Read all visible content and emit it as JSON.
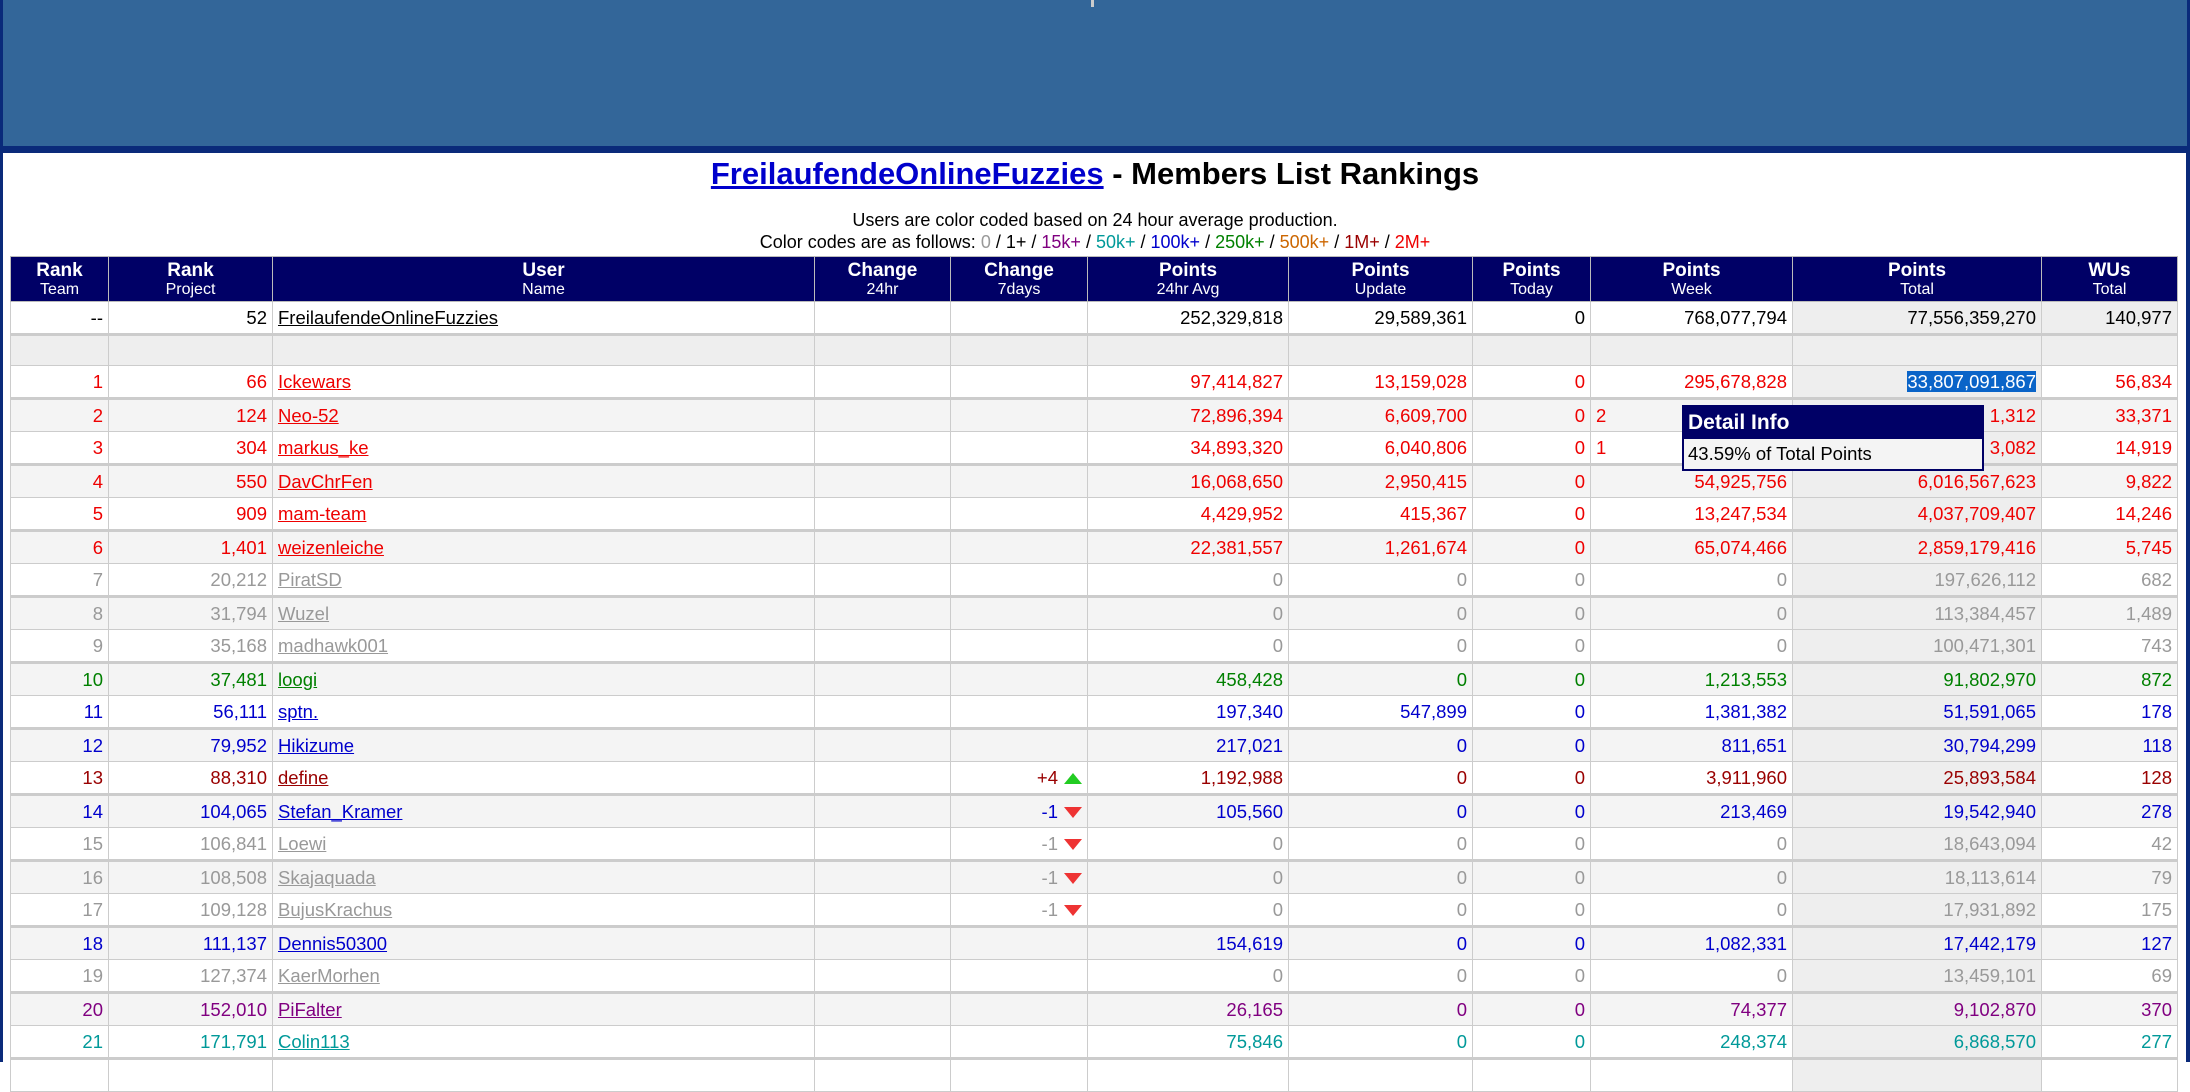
{
  "title": {
    "team_link": "FreilaufendeOnlineFuzzies",
    "suffix": " - Members List Rankings"
  },
  "subtitle": "Users are color coded based on 24 hour average production.",
  "legend": {
    "prefix": "Color codes are as follows: ",
    "items": [
      {
        "label": "0",
        "color": "#999999"
      },
      {
        "label": "1+",
        "color": "#000000"
      },
      {
        "label": "15k+",
        "color": "#800080"
      },
      {
        "label": "50k+",
        "color": "#009999"
      },
      {
        "label": "100k+",
        "color": "#0000cc"
      },
      {
        "label": "250k+",
        "color": "#008000"
      },
      {
        "label": "500k+",
        "color": "#cc6600"
      },
      {
        "label": "1M+",
        "color": "#990000"
      },
      {
        "label": "2M+",
        "color": "#ee0000"
      }
    ]
  },
  "columns": [
    {
      "main": "Rank",
      "sub": "Team"
    },
    {
      "main": "Rank",
      "sub": "Project"
    },
    {
      "main": "User",
      "sub": "Name"
    },
    {
      "main": "Change",
      "sub": "24hr"
    },
    {
      "main": "Change",
      "sub": "7days"
    },
    {
      "main": "Points",
      "sub": "24hr Avg"
    },
    {
      "main": "Points",
      "sub": "Update"
    },
    {
      "main": "Points",
      "sub": "Today"
    },
    {
      "main": "Points",
      "sub": "Week"
    },
    {
      "main": "Points",
      "sub": "Total"
    },
    {
      "main": "WUs",
      "sub": "Total"
    }
  ],
  "team_row": {
    "rank_team": "--",
    "rank_project": "52",
    "name": "FreilaufendeOnlineFuzzies",
    "change24": "",
    "change7": "",
    "avg": "252,329,818",
    "update": "29,589,361",
    "today": "0",
    "week": "768,077,794",
    "total": "77,556,359,270",
    "wus": "140,977"
  },
  "rows": [
    {
      "rank": "1",
      "proj": "66",
      "name": "Ickewars",
      "c24": "",
      "c7": "",
      "dir": "",
      "avg": "97,414,827",
      "upd": "13,159,028",
      "today": "0",
      "week": "295,678,828",
      "total": "33,807,091,867",
      "wus": "56,834",
      "color": "#ee0000",
      "selected": true
    },
    {
      "rank": "2",
      "proj": "124",
      "name": "Neo-52",
      "c24": "",
      "c7": "",
      "dir": "",
      "avg": "72,896,394",
      "upd": "6,609,700",
      "today": "0",
      "week": "2",
      "total": "1,312",
      "wus": "33,371",
      "color": "#ee0000"
    },
    {
      "rank": "3",
      "proj": "304",
      "name": "markus_ke",
      "c24": "",
      "c7": "",
      "dir": "",
      "avg": "34,893,320",
      "upd": "6,040,806",
      "today": "0",
      "week": "1",
      "total": "3,082",
      "wus": "14,919",
      "color": "#ee0000"
    },
    {
      "rank": "4",
      "proj": "550",
      "name": "DavChrFen",
      "c24": "",
      "c7": "",
      "dir": "",
      "avg": "16,068,650",
      "upd": "2,950,415",
      "today": "0",
      "week": "54,925,756",
      "total": "6,016,567,623",
      "wus": "9,822",
      "color": "#ee0000"
    },
    {
      "rank": "5",
      "proj": "909",
      "name": "mam-team",
      "c24": "",
      "c7": "",
      "dir": "",
      "avg": "4,429,952",
      "upd": "415,367",
      "today": "0",
      "week": "13,247,534",
      "total": "4,037,709,407",
      "wus": "14,246",
      "color": "#ee0000"
    },
    {
      "rank": "6",
      "proj": "1,401",
      "name": "weizenleiche",
      "c24": "",
      "c7": "",
      "dir": "",
      "avg": "22,381,557",
      "upd": "1,261,674",
      "today": "0",
      "week": "65,074,466",
      "total": "2,859,179,416",
      "wus": "5,745",
      "color": "#ee0000"
    },
    {
      "rank": "7",
      "proj": "20,212",
      "name": "PiratSD",
      "c24": "",
      "c7": "",
      "dir": "",
      "avg": "0",
      "upd": "0",
      "today": "0",
      "week": "0",
      "total": "197,626,112",
      "wus": "682",
      "color": "#999999"
    },
    {
      "rank": "8",
      "proj": "31,794",
      "name": "Wuzel",
      "c24": "",
      "c7": "",
      "dir": "",
      "avg": "0",
      "upd": "0",
      "today": "0",
      "week": "0",
      "total": "113,384,457",
      "wus": "1,489",
      "color": "#999999"
    },
    {
      "rank": "9",
      "proj": "35,168",
      "name": "madhawk001",
      "c24": "",
      "c7": "",
      "dir": "",
      "avg": "0",
      "upd": "0",
      "today": "0",
      "week": "0",
      "total": "100,471,301",
      "wus": "743",
      "color": "#999999"
    },
    {
      "rank": "10",
      "proj": "37,481",
      "name": "loogi",
      "c24": "",
      "c7": "",
      "dir": "",
      "avg": "458,428",
      "upd": "0",
      "today": "0",
      "week": "1,213,553",
      "total": "91,802,970",
      "wus": "872",
      "color": "#008000"
    },
    {
      "rank": "11",
      "proj": "56,111",
      "name": "sptn.",
      "c24": "",
      "c7": "",
      "dir": "",
      "avg": "197,340",
      "upd": "547,899",
      "today": "0",
      "week": "1,381,382",
      "total": "51,591,065",
      "wus": "178",
      "color": "#0000cc"
    },
    {
      "rank": "12",
      "proj": "79,952",
      "name": "Hikizume",
      "c24": "",
      "c7": "",
      "dir": "",
      "avg": "217,021",
      "upd": "0",
      "today": "0",
      "week": "811,651",
      "total": "30,794,299",
      "wus": "118",
      "color": "#0000cc"
    },
    {
      "rank": "13",
      "proj": "88,310",
      "name": "define",
      "c24": "",
      "c7": "+4",
      "dir": "up",
      "avg": "1,192,988",
      "upd": "0",
      "today": "0",
      "week": "3,911,960",
      "total": "25,893,584",
      "wus": "128",
      "color": "#990000"
    },
    {
      "rank": "14",
      "proj": "104,065",
      "name": "Stefan_Kramer",
      "c24": "",
      "c7": "-1",
      "dir": "down",
      "avg": "105,560",
      "upd": "0",
      "today": "0",
      "week": "213,469",
      "total": "19,542,940",
      "wus": "278",
      "color": "#0000cc"
    },
    {
      "rank": "15",
      "proj": "106,841",
      "name": "Loewi",
      "c24": "",
      "c7": "-1",
      "dir": "down",
      "avg": "0",
      "upd": "0",
      "today": "0",
      "week": "0",
      "total": "18,643,094",
      "wus": "42",
      "color": "#999999"
    },
    {
      "rank": "16",
      "proj": "108,508",
      "name": "Skajaquada",
      "c24": "",
      "c7": "-1",
      "dir": "down",
      "avg": "0",
      "upd": "0",
      "today": "0",
      "week": "0",
      "total": "18,113,614",
      "wus": "79",
      "color": "#999999"
    },
    {
      "rank": "17",
      "proj": "109,128",
      "name": "BujusKrachus",
      "c24": "",
      "c7": "-1",
      "dir": "down",
      "avg": "0",
      "upd": "0",
      "today": "0",
      "week": "0",
      "total": "17,931,892",
      "wus": "175",
      "color": "#999999"
    },
    {
      "rank": "18",
      "proj": "111,137",
      "name": "Dennis50300",
      "c24": "",
      "c7": "",
      "dir": "",
      "avg": "154,619",
      "upd": "0",
      "today": "0",
      "week": "1,082,331",
      "total": "17,442,179",
      "wus": "127",
      "color": "#0000cc"
    },
    {
      "rank": "19",
      "proj": "127,374",
      "name": "KaerMorhen",
      "c24": "",
      "c7": "",
      "dir": "",
      "avg": "0",
      "upd": "0",
      "today": "0",
      "week": "0",
      "total": "13,459,101",
      "wus": "69",
      "color": "#999999"
    },
    {
      "rank": "20",
      "proj": "152,010",
      "name": "PiFalter",
      "c24": "",
      "c7": "",
      "dir": "",
      "avg": "26,165",
      "upd": "0",
      "today": "0",
      "week": "74,377",
      "total": "9,102,870",
      "wus": "370",
      "color": "#800080"
    },
    {
      "rank": "21",
      "proj": "171,791",
      "name": "Colin113",
      "c24": "",
      "c7": "",
      "dir": "",
      "avg": "75,846",
      "upd": "0",
      "today": "0",
      "week": "248,374",
      "total": "6,868,570",
      "wus": "277",
      "color": "#009999"
    }
  ],
  "tooltip": {
    "title": "Detail Info",
    "body": "43.59% of Total Points"
  }
}
